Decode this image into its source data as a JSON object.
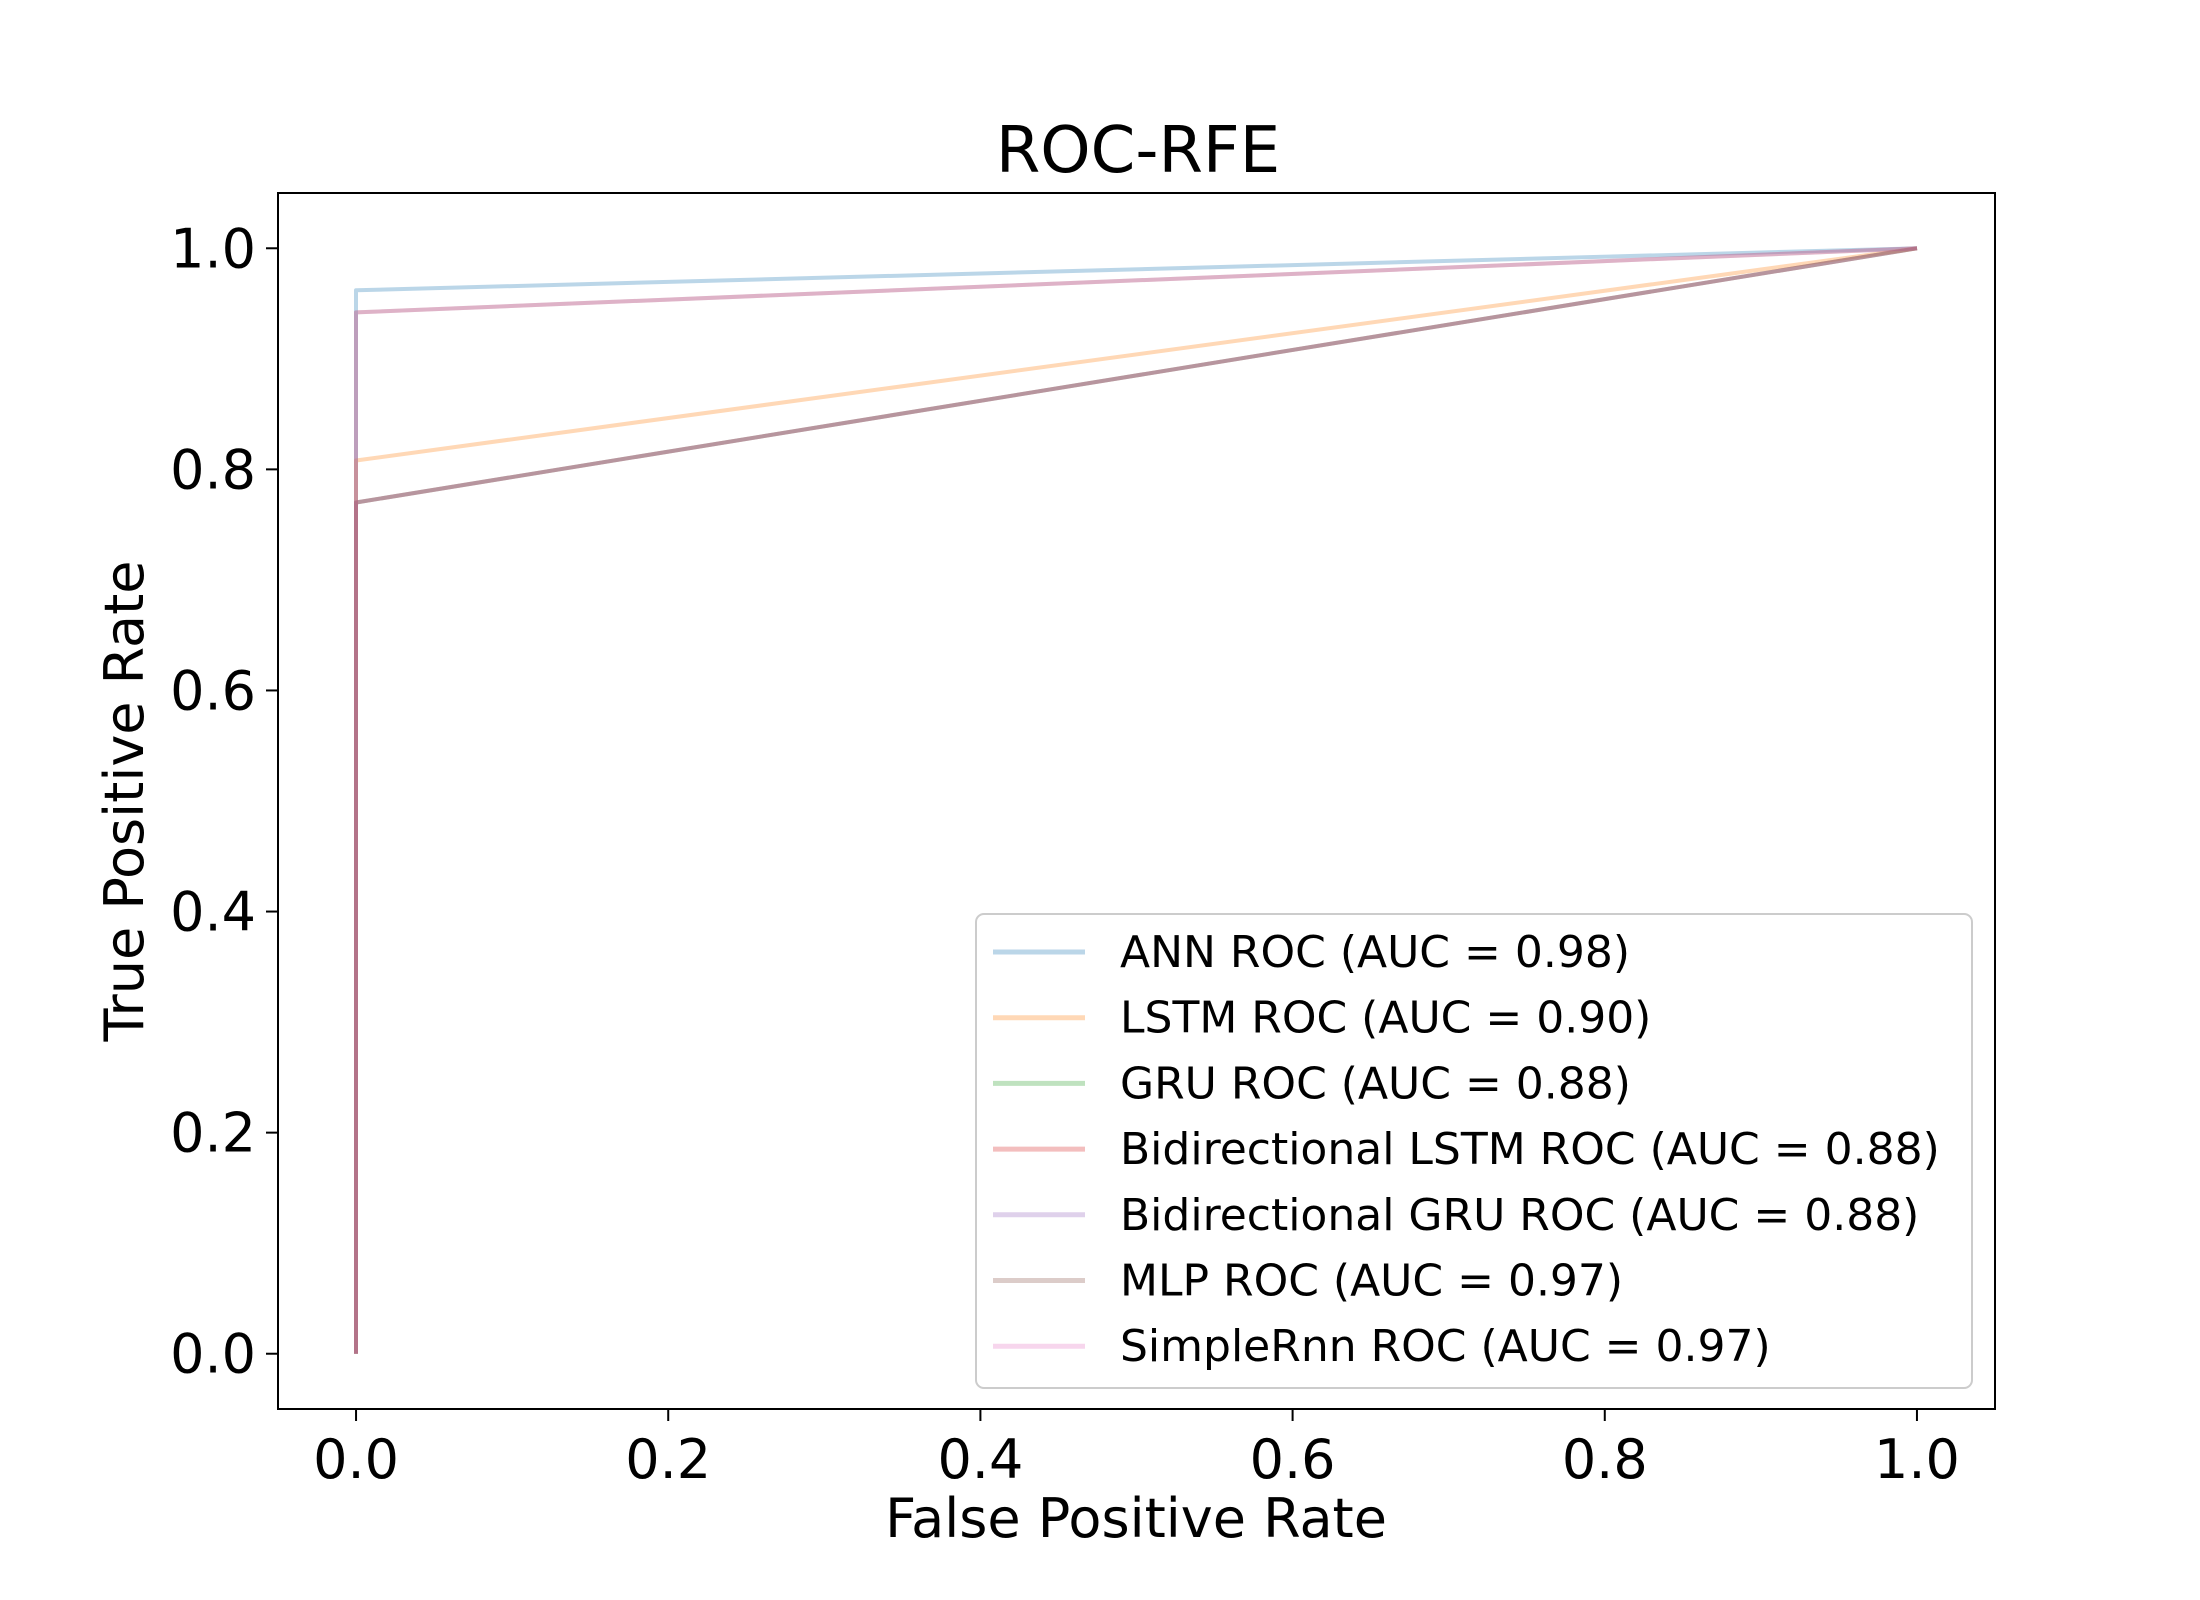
{
  "chart_data": {
    "type": "line",
    "title": "ROC-RFE",
    "xlabel": "False Positive Rate",
    "ylabel": "True Positive Rate",
    "xlim": [
      -0.05,
      1.05
    ],
    "ylim": [
      -0.05,
      1.05
    ],
    "xticks": [
      "0.0",
      "0.2",
      "0.4",
      "0.6",
      "0.8",
      "1.0"
    ],
    "yticks": [
      "0.0",
      "0.2",
      "0.4",
      "0.6",
      "0.8",
      "1.0"
    ],
    "grid": false,
    "legend_position": "lower-right",
    "series": [
      {
        "name": "ANN ROC (AUC = 0.98)",
        "color": "#1f77b4",
        "x": [
          0,
          0,
          1
        ],
        "y": [
          0,
          0.962,
          1
        ]
      },
      {
        "name": "LSTM ROC (AUC = 0.90)",
        "color": "#ff7f0e",
        "x": [
          0,
          0,
          1
        ],
        "y": [
          0,
          0.808,
          1
        ]
      },
      {
        "name": "GRU ROC (AUC = 0.88)",
        "color": "#2ca02c",
        "x": [
          0,
          0,
          1
        ],
        "y": [
          0,
          0.77,
          1
        ]
      },
      {
        "name": "Bidirectional LSTM ROC (AUC = 0.88)",
        "color": "#d62728",
        "x": [
          0,
          0,
          1
        ],
        "y": [
          0,
          0.77,
          1
        ]
      },
      {
        "name": "Bidirectional GRU ROC (AUC = 0.88)",
        "color": "#9467bd",
        "x": [
          0,
          0,
          1
        ],
        "y": [
          0,
          0.77,
          1
        ]
      },
      {
        "name": "MLP ROC (AUC = 0.97)",
        "color": "#8c564b",
        "x": [
          0,
          0,
          1
        ],
        "y": [
          0,
          0.942,
          1
        ]
      },
      {
        "name": "SimpleRnn ROC (AUC = 0.97)",
        "color": "#e377c2",
        "x": [
          0,
          0,
          1
        ],
        "y": [
          0,
          0.942,
          1
        ]
      }
    ]
  }
}
